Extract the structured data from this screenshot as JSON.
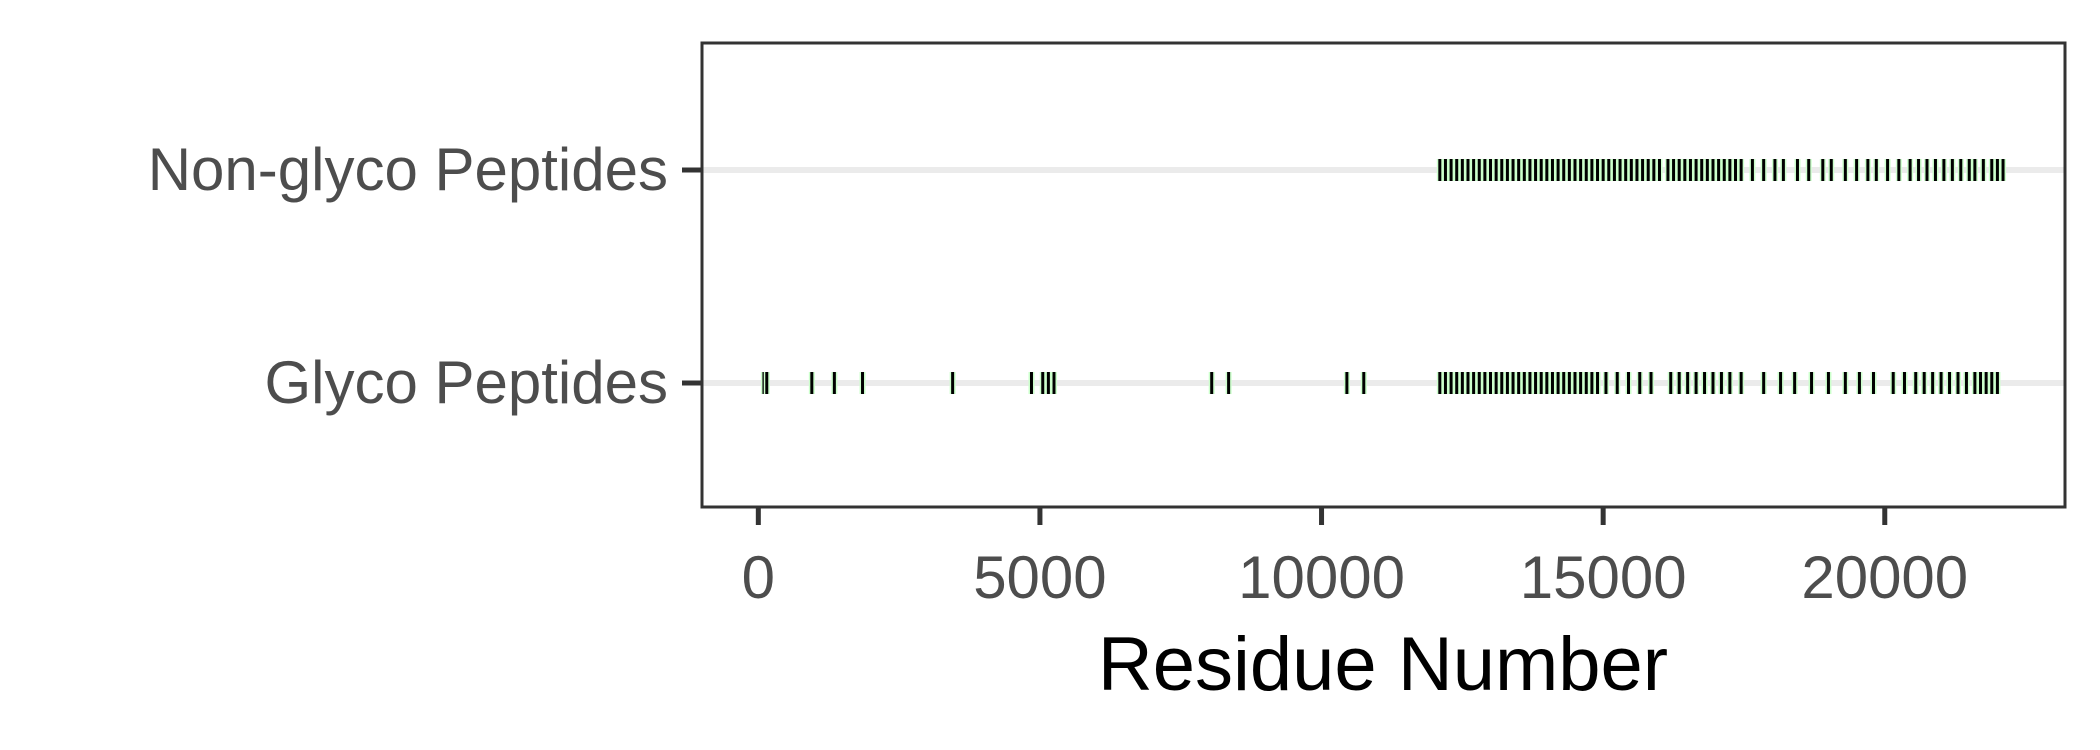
{
  "chart_data": {
    "type": "scatter",
    "title": "",
    "xlabel": "Residue Number",
    "ylabel": "",
    "xlim": [
      -1000,
      23200
    ],
    "xticks": [
      0,
      5000,
      10000,
      15000,
      20000
    ],
    "xtick_labels": [
      "0",
      "5000",
      "10000",
      "15000",
      "20000"
    ],
    "grid": "horizontal",
    "legend": "none",
    "categories": [
      "Non-glyco Peptides",
      "Glyco Peptides"
    ],
    "colors": {
      "mark": "#000000",
      "mark_highlight": "#ccffcc",
      "grid": "#ebebeb",
      "frame": "#333333"
    },
    "series": [
      {
        "category": "Non-glyco Peptides",
        "x": [
          12100,
          12200,
          12300,
          12400,
          12500,
          12600,
          12700,
          12800,
          12900,
          13000,
          13100,
          13200,
          13300,
          13400,
          13500,
          13600,
          13700,
          13800,
          13900,
          14000,
          14100,
          14200,
          14300,
          14400,
          14500,
          14600,
          14700,
          14800,
          14900,
          15000,
          15100,
          15200,
          15300,
          15400,
          15500,
          15600,
          15700,
          15800,
          15900,
          16000,
          16150,
          16250,
          16350,
          16450,
          16550,
          16650,
          16750,
          16850,
          16950,
          17050,
          17150,
          17250,
          17350,
          17450,
          17650,
          17850,
          18050,
          18200,
          18450,
          18650,
          18900,
          19050,
          19300,
          19500,
          19700,
          19850,
          20050,
          20250,
          20450,
          20600,
          20750,
          20900,
          21050,
          21200,
          21350,
          21500,
          21600,
          21750,
          21900,
          22000,
          22100
        ]
      },
      {
        "category": "Glyco Peptides",
        "x": [
          100,
          150,
          950,
          1350,
          1850,
          3450,
          4850,
          5050,
          5150,
          5250,
          8050,
          8350,
          10450,
          10750,
          12100,
          12200,
          12300,
          12400,
          12500,
          12600,
          12700,
          12800,
          12900,
          13000,
          13100,
          13200,
          13300,
          13400,
          13500,
          13600,
          13700,
          13800,
          13900,
          14000,
          14100,
          14200,
          14300,
          14400,
          14500,
          14600,
          14700,
          14800,
          14900,
          15050,
          15250,
          15450,
          15650,
          15850,
          16200,
          16350,
          16500,
          16650,
          16800,
          16950,
          17100,
          17250,
          17450,
          17850,
          18150,
          18400,
          18700,
          19000,
          19300,
          19550,
          19800,
          20150,
          20350,
          20550,
          20700,
          20850,
          21000,
          21150,
          21300,
          21450,
          21600,
          21700,
          21800,
          21900,
          22000
        ]
      }
    ]
  }
}
